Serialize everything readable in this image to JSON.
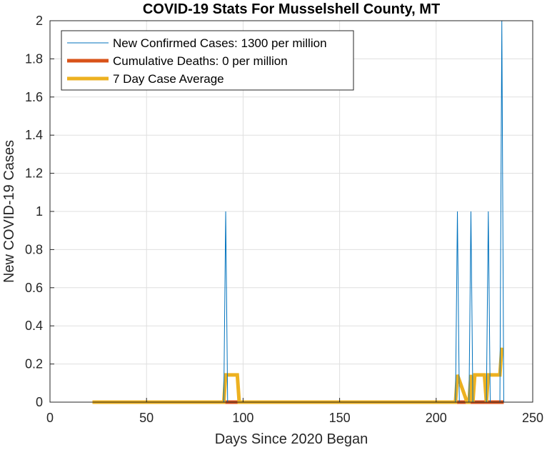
{
  "chart_data": {
    "type": "line",
    "title": "COVID-19 Stats For Musselshell County, MT",
    "xlabel": "Days Since 2020 Began",
    "ylabel": "New COVID-19 Cases",
    "xlim": [
      0,
      250
    ],
    "ylim": [
      0,
      2
    ],
    "xticks": [
      "0",
      "50",
      "100",
      "150",
      "200",
      "250"
    ],
    "yticks": [
      "0",
      "0.2",
      "0.4",
      "0.6",
      "0.8",
      "1",
      "1.2",
      "1.4",
      "1.6",
      "1.8",
      "2"
    ],
    "grid": true,
    "legend_position": "top-left",
    "series": [
      {
        "name": "New Confirmed Cases: 1300 per million",
        "color": "#0072BD",
        "style": "thin",
        "points": [
          [
            22,
            0
          ],
          [
            90,
            0
          ],
          [
            91,
            1
          ],
          [
            92,
            0
          ],
          [
            210,
            0
          ],
          [
            211,
            1
          ],
          [
            212,
            0
          ],
          [
            217,
            0
          ],
          [
            218,
            1
          ],
          [
            219,
            0
          ],
          [
            226,
            0
          ],
          [
            227,
            1
          ],
          [
            228,
            0
          ],
          [
            233,
            0
          ],
          [
            234,
            2
          ],
          [
            235,
            0
          ]
        ]
      },
      {
        "name": "Cumulative Deaths: 0 per million",
        "color": "#D95319",
        "style": "thick",
        "points": [
          [
            22,
            0
          ],
          [
            235,
            0
          ]
        ]
      },
      {
        "name": "7 Day Case Average",
        "color": "#EDB120",
        "style": "thick",
        "points": [
          [
            22,
            0
          ],
          [
            90,
            0
          ],
          [
            91,
            0.143
          ],
          [
            97,
            0.143
          ],
          [
            98,
            0
          ],
          [
            210,
            0
          ],
          [
            211,
            0.143
          ],
          [
            216,
            0
          ],
          [
            217,
            0
          ],
          [
            218,
            0.143
          ],
          [
            219,
            0
          ],
          [
            220,
            0.143
          ],
          [
            225,
            0.143
          ],
          [
            226,
            0
          ],
          [
            227,
            0.143
          ],
          [
            233,
            0.143
          ],
          [
            234,
            0.286
          ]
        ]
      }
    ]
  }
}
